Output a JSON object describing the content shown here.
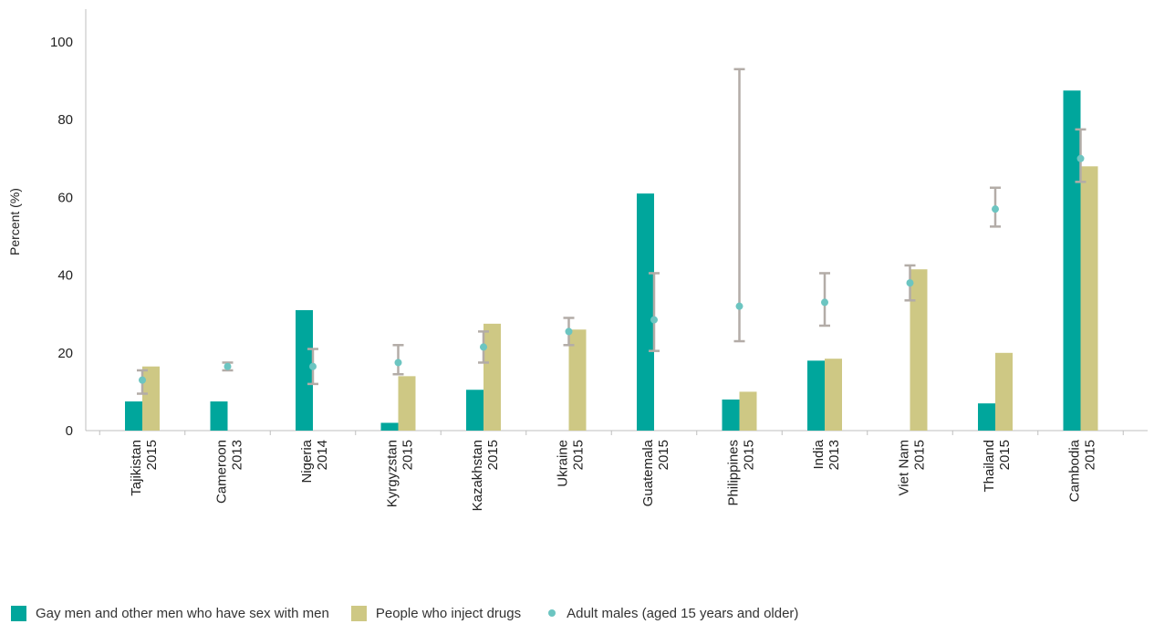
{
  "chart_data": {
    "type": "bar",
    "title": "",
    "xlabel": "",
    "ylabel": "Percent (%)",
    "ylim": [
      0,
      100
    ],
    "yticks": [
      0,
      20,
      40,
      60,
      80,
      100
    ],
    "grid": false,
    "legend_position": "bottom-left",
    "categories": [
      {
        "country": "Tajikistan",
        "year": "2015"
      },
      {
        "country": "Cameroon",
        "year": "2013"
      },
      {
        "country": "Nigeria",
        "year": "2014"
      },
      {
        "country": "Kyrgyzstan",
        "year": "2015"
      },
      {
        "country": "Kazakhstan",
        "year": "2015"
      },
      {
        "country": "Ukraine",
        "year": "2015"
      },
      {
        "country": "Guatemala",
        "year": "2015"
      },
      {
        "country": "Philippines",
        "year": "2015"
      },
      {
        "country": "India",
        "year": "2013"
      },
      {
        "country": "Viet Nam",
        "year": "2015"
      },
      {
        "country": "Thailand",
        "year": "2015"
      },
      {
        "country": "Cambodia",
        "year": "2015"
      }
    ],
    "series": [
      {
        "name": "Gay men and other men who have sex with men",
        "type": "bar",
        "color": "#00a69c",
        "values": [
          7.5,
          7.5,
          31,
          2,
          10.5,
          null,
          61,
          8,
          18,
          null,
          7,
          87.5
        ]
      },
      {
        "name": "People who inject drugs",
        "type": "bar",
        "color": "#cec884",
        "values": [
          16.5,
          null,
          null,
          14,
          27.5,
          26,
          null,
          10,
          18.5,
          41.5,
          20,
          68
        ]
      },
      {
        "name": "Adult males (aged 15 years and older)",
        "type": "point",
        "color": "#6cc5c1",
        "error_color": "#b3aca7",
        "values": [
          13,
          16.5,
          16.5,
          17.5,
          21.5,
          25.5,
          28.5,
          32,
          33,
          38,
          57,
          70
        ],
        "error_low": [
          9.5,
          15.5,
          12,
          14.5,
          17.5,
          22,
          20.5,
          23,
          27,
          33.5,
          52.5,
          64
        ],
        "error_high": [
          15.5,
          17.5,
          21,
          22,
          25.5,
          29,
          40.5,
          93,
          40.5,
          42.5,
          62.5,
          77.5
        ]
      }
    ]
  }
}
